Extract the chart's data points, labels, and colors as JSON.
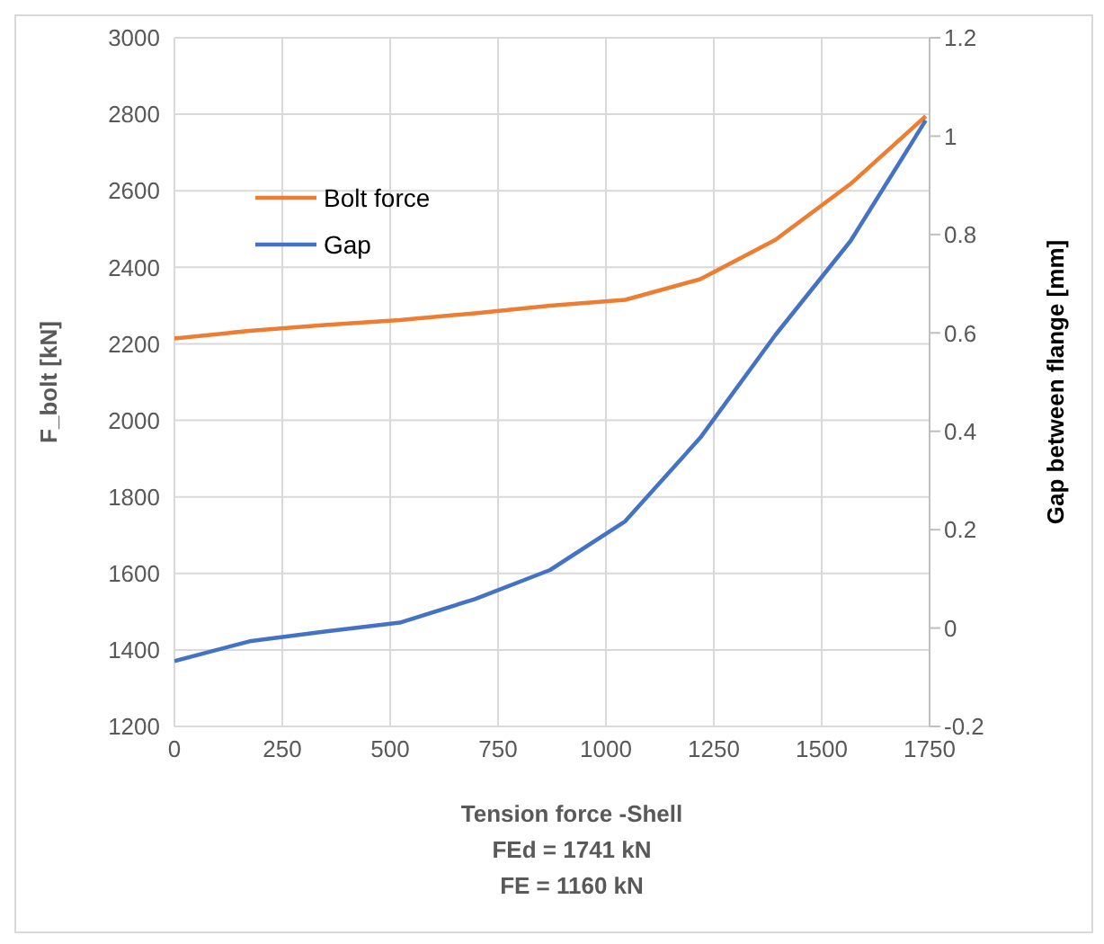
{
  "chart_data": {
    "type": "line",
    "xlabel": "Tension force -Shell",
    "ylabel": "F_bolt  [kN]",
    "y2label": "Gap between flange [mm]",
    "annotations": [
      "FEd = 1741 kN",
      "FE = 1160 kN"
    ],
    "x": [
      0,
      174.1,
      348.2,
      522.3,
      696.4,
      870.5,
      1044.6,
      1218.7,
      1392.8,
      1566.9,
      1741
    ],
    "series": [
      {
        "name": "Bolt force",
        "color": "#ed7d31",
        "values": [
          2214,
          2234,
          2249,
          2262,
          2280,
          2300,
          2315,
          2369,
          2472,
          2618,
          2795
        ]
      },
      {
        "name": "Gap",
        "color": "#4472c4",
        "axis": "y2",
        "values": [
          -0.067,
          -0.027,
          -0.007,
          0.011,
          0.059,
          0.118,
          0.217,
          0.387,
          0.596,
          0.787,
          1.032
        ]
      }
    ],
    "xlim": [
      0,
      1750
    ],
    "xticks": [
      0,
      250,
      500,
      750,
      1000,
      1250,
      1500,
      1750
    ],
    "ylim": [
      1200,
      3000
    ],
    "yticks": [
      1200,
      1400,
      1600,
      1800,
      2000,
      2200,
      2400,
      2600,
      2800,
      3000
    ],
    "y2lim": [
      -0.2,
      1.2
    ],
    "y2ticks": [
      -0.2,
      0,
      0.2,
      0.4,
      0.6,
      0.8,
      1,
      1.2
    ],
    "grid": true,
    "legend": "top left",
    "marker": "none",
    "line_style": "solid"
  }
}
